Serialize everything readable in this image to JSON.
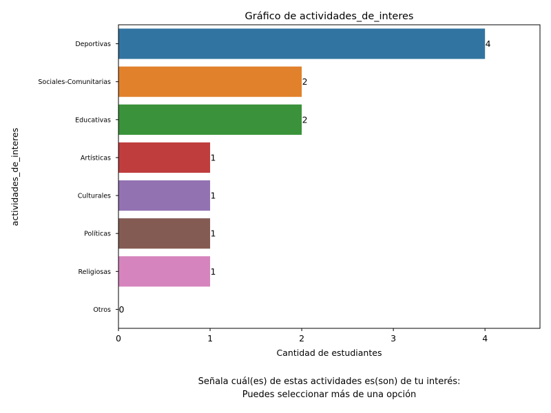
{
  "chart_data": {
    "type": "bar",
    "orientation": "horizontal",
    "title": "Gráfico de actividades_de_interes",
    "xlabel": "Cantidad de estudiantes",
    "ylabel": "actividades_de_interes",
    "categories": [
      "Deportivas",
      "Sociales-Comunitarias",
      "Educativas",
      "Artísticas",
      "Culturales",
      "Políticas",
      "Religiosas",
      "Otros"
    ],
    "values": [
      4,
      2,
      2,
      1,
      1,
      1,
      1,
      0
    ],
    "data_labels": [
      "4",
      "2",
      "2",
      "1",
      "1",
      "1",
      "1",
      "0"
    ],
    "colors": [
      "#3274a1",
      "#e1812c",
      "#3a923a",
      "#c03d3e",
      "#9372b2",
      "#845b53",
      "#d684bd",
      "#7f7f7f"
    ],
    "xlim": [
      0,
      4.6
    ],
    "xticks": [
      0,
      1,
      2,
      3,
      4
    ],
    "xtick_labels": [
      "0",
      "1",
      "2",
      "3",
      "4"
    ],
    "grid": false,
    "legend": "none"
  },
  "caption": {
    "line1": "Señala cuál(es) de estas actividades es(son) de tu interés:",
    "line2": "Puedes seleccionar más de una opción"
  }
}
